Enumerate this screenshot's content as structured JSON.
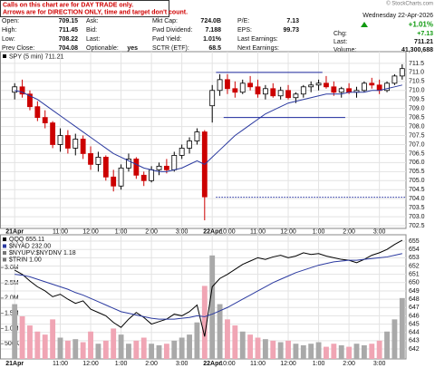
{
  "notice": [
    "Calls on this chart are for DAY TRADE only.",
    "Arrows are for DIRECTION ONLY, time and target don't count."
  ],
  "copyright": "© StockCharts.com",
  "header": {
    "columns": [
      [
        {
          "label": "Open:",
          "value": "709.15"
        },
        {
          "label": "High:",
          "value": "711.45"
        },
        {
          "label": "Low:",
          "value": "708.22"
        },
        {
          "label": "Prev Close:",
          "value": "704.08"
        }
      ],
      [
        {
          "label": "Ask:"
        },
        {
          "label": "Bid:"
        },
        {
          "label": "Last:"
        },
        {
          "label": "Optionable:",
          "value": "yes"
        }
      ],
      [
        {
          "label": "Mkt Cap:",
          "value": "724.0B"
        },
        {
          "label": "Fwd Dividend:",
          "value": "7.188"
        },
        {
          "label": "Fwd Yield:",
          "value": "1.01%"
        },
        {
          "label": "SCTR (ETF):",
          "value": "68.5"
        }
      ],
      [
        {
          "label": "P/E:",
          "value": "7.13"
        },
        {
          "label": "EPS:",
          "value": "99.73"
        },
        {
          "label": "Last Earnings:"
        },
        {
          "label": "Next Earnings:"
        }
      ]
    ]
  },
  "quote": {
    "date": "Wednesday 22-Apr-2026",
    "change_pct": "+1.01%",
    "change_color": "#109a10",
    "fields": [
      {
        "label": "Chg:",
        "value": "+7.13"
      },
      {
        "label": "Last:",
        "value": "711.21"
      },
      {
        "label": "Volume:",
        "value": "41,300,688"
      }
    ]
  },
  "chart_data": [
    {
      "type": "candlestick",
      "y_axis_side": "right",
      "grid": true,
      "up_color": "#000000",
      "down_color": "#cc0000",
      "categories": [
        "21Apr",
        null,
        null,
        null,
        null,
        null,
        "11:00",
        null,
        null,
        null,
        "12:00",
        null,
        null,
        null,
        "1:00",
        null,
        null,
        null,
        "2:00",
        null,
        null,
        null,
        "3:00",
        null,
        null,
        null,
        "22Apr",
        null,
        "10:00",
        null,
        null,
        null,
        "11:00",
        null,
        null,
        null,
        "12:00",
        null,
        null,
        null,
        "1:00",
        null,
        null,
        null,
        "2:00",
        null,
        null,
        null,
        "3:00",
        null,
        null,
        null
      ],
      "series": [
        {
          "name": "SPY (5 min) 711.21",
          "open": [
            709.9,
            710.2,
            709.8,
            709.1,
            708.5,
            708.2,
            707.0,
            707.5,
            706.8,
            707.3,
            706.5,
            705.9,
            706.3,
            705.2,
            704.7,
            705.7,
            706.2,
            705.3,
            705.0,
            705.6,
            705.8,
            705.6,
            706.4,
            706.8,
            707.2,
            707.7,
            709.15,
            710.0,
            710.6,
            710.1,
            709.9,
            710.4,
            710.2,
            709.8,
            710.1,
            709.7,
            710.0,
            709.6,
            709.8,
            710.2,
            710.3,
            710.4,
            710.2,
            709.9,
            710.1,
            709.9,
            710.0,
            710.4,
            710.3,
            710.0,
            710.4,
            710.8
          ],
          "high": [
            710.4,
            710.6,
            710.0,
            709.4,
            708.9,
            708.3,
            707.9,
            707.8,
            707.6,
            707.5,
            706.9,
            706.6,
            706.4,
            705.6,
            705.9,
            706.5,
            706.3,
            705.5,
            705.8,
            706.0,
            706.2,
            706.6,
            707.0,
            707.4,
            707.9,
            707.8,
            710.3,
            710.9,
            710.9,
            710.5,
            710.6,
            710.8,
            710.6,
            710.3,
            710.4,
            710.2,
            710.3,
            709.9,
            710.3,
            710.5,
            710.6,
            710.8,
            710.5,
            710.2,
            710.4,
            710.2,
            710.5,
            710.7,
            710.6,
            710.5,
            710.9,
            711.45
          ],
          "low": [
            709.5,
            709.6,
            708.9,
            708.3,
            707.9,
            706.8,
            706.6,
            706.5,
            706.4,
            706.2,
            705.6,
            705.5,
            705.0,
            704.4,
            704.5,
            705.5,
            705.1,
            704.7,
            704.9,
            705.3,
            705.4,
            705.5,
            706.2,
            706.5,
            707.0,
            702.8,
            708.22,
            709.7,
            709.8,
            709.6,
            709.8,
            710.0,
            709.6,
            709.5,
            709.6,
            709.5,
            709.5,
            709.3,
            709.6,
            709.9,
            710.0,
            710.1,
            709.7,
            709.6,
            709.8,
            709.6,
            709.9,
            710.1,
            709.8,
            709.9,
            710.3,
            710.6
          ],
          "close": [
            710.2,
            709.8,
            709.1,
            708.5,
            708.2,
            707.0,
            707.5,
            706.8,
            707.3,
            706.5,
            705.9,
            706.3,
            705.2,
            704.7,
            705.7,
            706.2,
            705.3,
            705.0,
            705.6,
            705.8,
            705.6,
            706.4,
            706.8,
            707.2,
            707.7,
            704.1,
            710.0,
            710.6,
            710.1,
            709.9,
            710.4,
            710.2,
            709.8,
            710.1,
            709.7,
            710.0,
            709.6,
            709.8,
            710.2,
            710.3,
            710.4,
            710.2,
            709.9,
            710.1,
            709.9,
            710.0,
            710.4,
            710.3,
            710.0,
            710.4,
            710.8,
            711.21
          ]
        }
      ],
      "overlays": [
        {
          "color": "#2b3aa0",
          "values": [
            710.0,
            709.9,
            709.7,
            709.5,
            709.2,
            708.9,
            708.6,
            708.3,
            708.0,
            707.7,
            707.4,
            707.1,
            706.8,
            706.5,
            706.3,
            706.1,
            705.9,
            705.7,
            705.6,
            705.5,
            705.5,
            705.6,
            705.7,
            705.9,
            706.1,
            705.9,
            706.3,
            706.7,
            707.1,
            707.5,
            707.8,
            708.1,
            708.4,
            708.7,
            708.9,
            709.1,
            709.3,
            709.4,
            709.5,
            709.6,
            709.7,
            709.8,
            709.8,
            709.8,
            709.9,
            709.9,
            709.9,
            710.0,
            710.0,
            710.1,
            710.2,
            710.3
          ]
        }
      ],
      "hlines": [
        {
          "value": 711.0,
          "color": "#1f2a9e",
          "start": 27,
          "end": 40
        },
        {
          "value": 708.5,
          "color": "#1f2a9e",
          "start": 28,
          "end": 43
        },
        {
          "value": 704.08,
          "color": "#1f2a9e",
          "start": 27,
          "end": 51,
          "dashed": true
        }
      ],
      "ylim": [
        702.35,
        712.15
      ],
      "yticks": [
        702.5,
        {
          "value": 703,
          "label": "703.0"
        },
        703.5,
        {
          "value": 704,
          "label": "704.0"
        },
        704.5,
        {
          "value": 705,
          "label": "705.0"
        },
        705.5,
        {
          "value": 706,
          "label": "706.0"
        },
        706.5,
        {
          "value": 707,
          "label": "707.0"
        },
        707.5,
        {
          "value": 708,
          "label": "708.0"
        },
        708.5,
        {
          "value": 709,
          "label": "709.0"
        },
        709.5,
        {
          "value": 710,
          "label": "710.0"
        },
        710.5,
        {
          "value": 711,
          "label": "711.0"
        },
        711.5
      ]
    },
    {
      "type": "combo",
      "y_axis_side": "left",
      "grid": true,
      "down_color": "#f0a5b4",
      "categories": [
        "21Apr",
        null,
        null,
        null,
        null,
        null,
        "11:00",
        null,
        null,
        null,
        "12:00",
        null,
        null,
        null,
        "1:00",
        null,
        null,
        null,
        "2:00",
        null,
        null,
        null,
        "3:00",
        null,
        null,
        null,
        "22Apr",
        null,
        "10:00",
        null,
        null,
        null,
        "11:00",
        null,
        null,
        null,
        "12:00",
        null,
        null,
        null,
        "1:00",
        null,
        null,
        null,
        "2:00",
        null,
        null,
        null,
        "3:00",
        null,
        null,
        null
      ],
      "series": [
        {
          "type": "bar",
          "color": "#a9a9a9",
          "values": [
            1800000,
            1400000,
            1100000,
            900000,
            800000,
            1300000,
            700000,
            600000,
            650000,
            550000,
            900000,
            500000,
            600000,
            1000000,
            800000,
            500000,
            600000,
            700000,
            500000,
            450000,
            500000,
            600000,
            700000,
            800000,
            1200000,
            2400000,
            3400000,
            1800000,
            1300000,
            1100000,
            900000,
            800000,
            700000,
            650000,
            600000,
            550000,
            600000,
            500000,
            450000,
            500000,
            550000,
            400000,
            500000,
            450000,
            400000,
            500000,
            450000,
            500000,
            600000,
            900000,
            1300000,
            2000000
          ]
        },
        {
          "type": "line",
          "name": "QQQ 655.11",
          "axis": "y2",
          "color": "#000000",
          "values": [
            651.5,
            651.0,
            650.2,
            649.5,
            649.0,
            648.3,
            648.6,
            648.0,
            647.5,
            647.8,
            646.8,
            646.4,
            646.0,
            645.2,
            644.6,
            645.6,
            646.4,
            645.8,
            645.0,
            645.3,
            645.6,
            646.2,
            646.0,
            646.5,
            647.3,
            643.5,
            649.5,
            650.5,
            651.0,
            651.6,
            652.2,
            652.6,
            653.0,
            652.8,
            653.1,
            653.3,
            653.0,
            653.2,
            653.6,
            653.4,
            653.5,
            653.2,
            653.0,
            652.8,
            652.7,
            652.4,
            652.8,
            653.3,
            653.6,
            654.0,
            654.6,
            655.11
          ]
        },
        {
          "type": "line",
          "axis": "y2",
          "color": "#2b3aa0",
          "values": [
            651.0,
            650.9,
            650.7,
            650.4,
            650.1,
            649.8,
            649.5,
            649.2,
            648.8,
            648.5,
            648.1,
            647.7,
            647.3,
            646.9,
            646.5,
            646.3,
            646.1,
            645.9,
            645.7,
            645.6,
            645.6,
            645.6,
            645.7,
            645.8,
            646.0,
            645.9,
            646.2,
            646.6,
            647.0,
            647.5,
            648.0,
            648.5,
            649.0,
            649.5,
            650.0,
            650.4,
            650.8,
            651.2,
            651.5,
            651.8,
            652.1,
            652.3,
            652.5,
            652.6,
            652.7,
            652.7,
            652.8,
            652.9,
            653.0,
            653.1,
            653.3,
            653.5
          ]
        }
      ],
      "legend_extra": [
        {
          "name": "$NYAD 232.00",
          "color": "#2b3aa0"
        },
        {
          "name": "$NYUPV:$NYDNV 1.18",
          "color": "#777777"
        },
        {
          "name": "$TRIN 1.00",
          "color": "#777777"
        }
      ],
      "ylim": [
        0,
        4080000
      ],
      "yticks": [
        {
          "value": 500000,
          "label": "500K"
        },
        {
          "value": 1000000,
          "label": "1.0M"
        },
        {
          "value": 1500000,
          "label": "1.5M"
        },
        {
          "value": 2000000,
          "label": "2.0M"
        },
        {
          "value": 2500000,
          "label": "2.5M"
        },
        {
          "value": 3000000,
          "label": "3.0M"
        }
      ],
      "y2lim": [
        640.8,
        655.77
      ],
      "y2ticks": [
        642,
        643,
        644,
        645,
        646,
        647,
        648,
        649,
        650,
        651,
        652,
        653,
        654,
        655
      ]
    }
  ]
}
